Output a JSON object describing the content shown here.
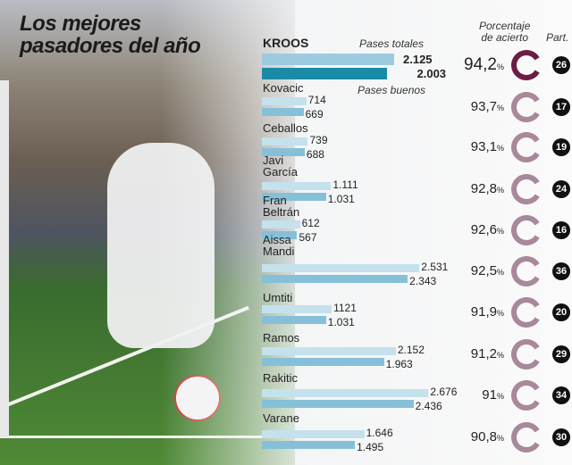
{
  "title_line1": "Los mejores",
  "title_line2": "pasadores del año",
  "headers": {
    "total": "Pases totales",
    "good": "Pases buenos",
    "pct_line1": "Porcentaje",
    "pct_line2": "de acierto",
    "part": "Part."
  },
  "colors": {
    "highlight_total": "#9ccbe0",
    "highlight_good": "#1a8aa6",
    "total": "#c4e1ec",
    "good": "#86c0d8",
    "ring_highlight": "#6b1d45",
    "ring": "#a8889a"
  },
  "chart_data": {
    "type": "bar",
    "categories": [
      "KROOS",
      "Kovacic",
      "Ceballos",
      "Javi García",
      "Fran Beltrán",
      "Aissa Mandi",
      "Umtiti",
      "Ramos",
      "Rakitic",
      "Varane"
    ],
    "series": [
      {
        "name": "Pases totales",
        "values": [
          2125,
          714,
          739,
          1111,
          612,
          2531,
          1121,
          2152,
          2676,
          1646
        ],
        "labels": [
          "2.125",
          "714",
          "739",
          "1.111",
          "612",
          "2.531",
          "1121",
          "2.152",
          "2.676",
          "1.646"
        ]
      },
      {
        "name": "Pases buenos",
        "values": [
          2003,
          669,
          688,
          1031,
          567,
          2343,
          1031,
          1963,
          2436,
          1495
        ],
        "labels": [
          "2.003",
          "669",
          "688",
          "1.031",
          "567",
          "2.343",
          "1.031",
          "1.963",
          "2.436",
          "1.495"
        ]
      }
    ],
    "accuracy_pct": [
      "94,2",
      "93,7",
      "93,1",
      "92,8",
      "92,6",
      "92,5",
      "91,9",
      "91,2",
      "91",
      "90,8"
    ],
    "accuracy_values": [
      94.2,
      93.7,
      93.1,
      92.8,
      92.6,
      92.5,
      91.9,
      91.2,
      91,
      90.8
    ],
    "pct_unit": "%",
    "matches": [
      "26",
      "17",
      "19",
      "24",
      "16",
      "36",
      "20",
      "29",
      "34",
      "30"
    ]
  }
}
